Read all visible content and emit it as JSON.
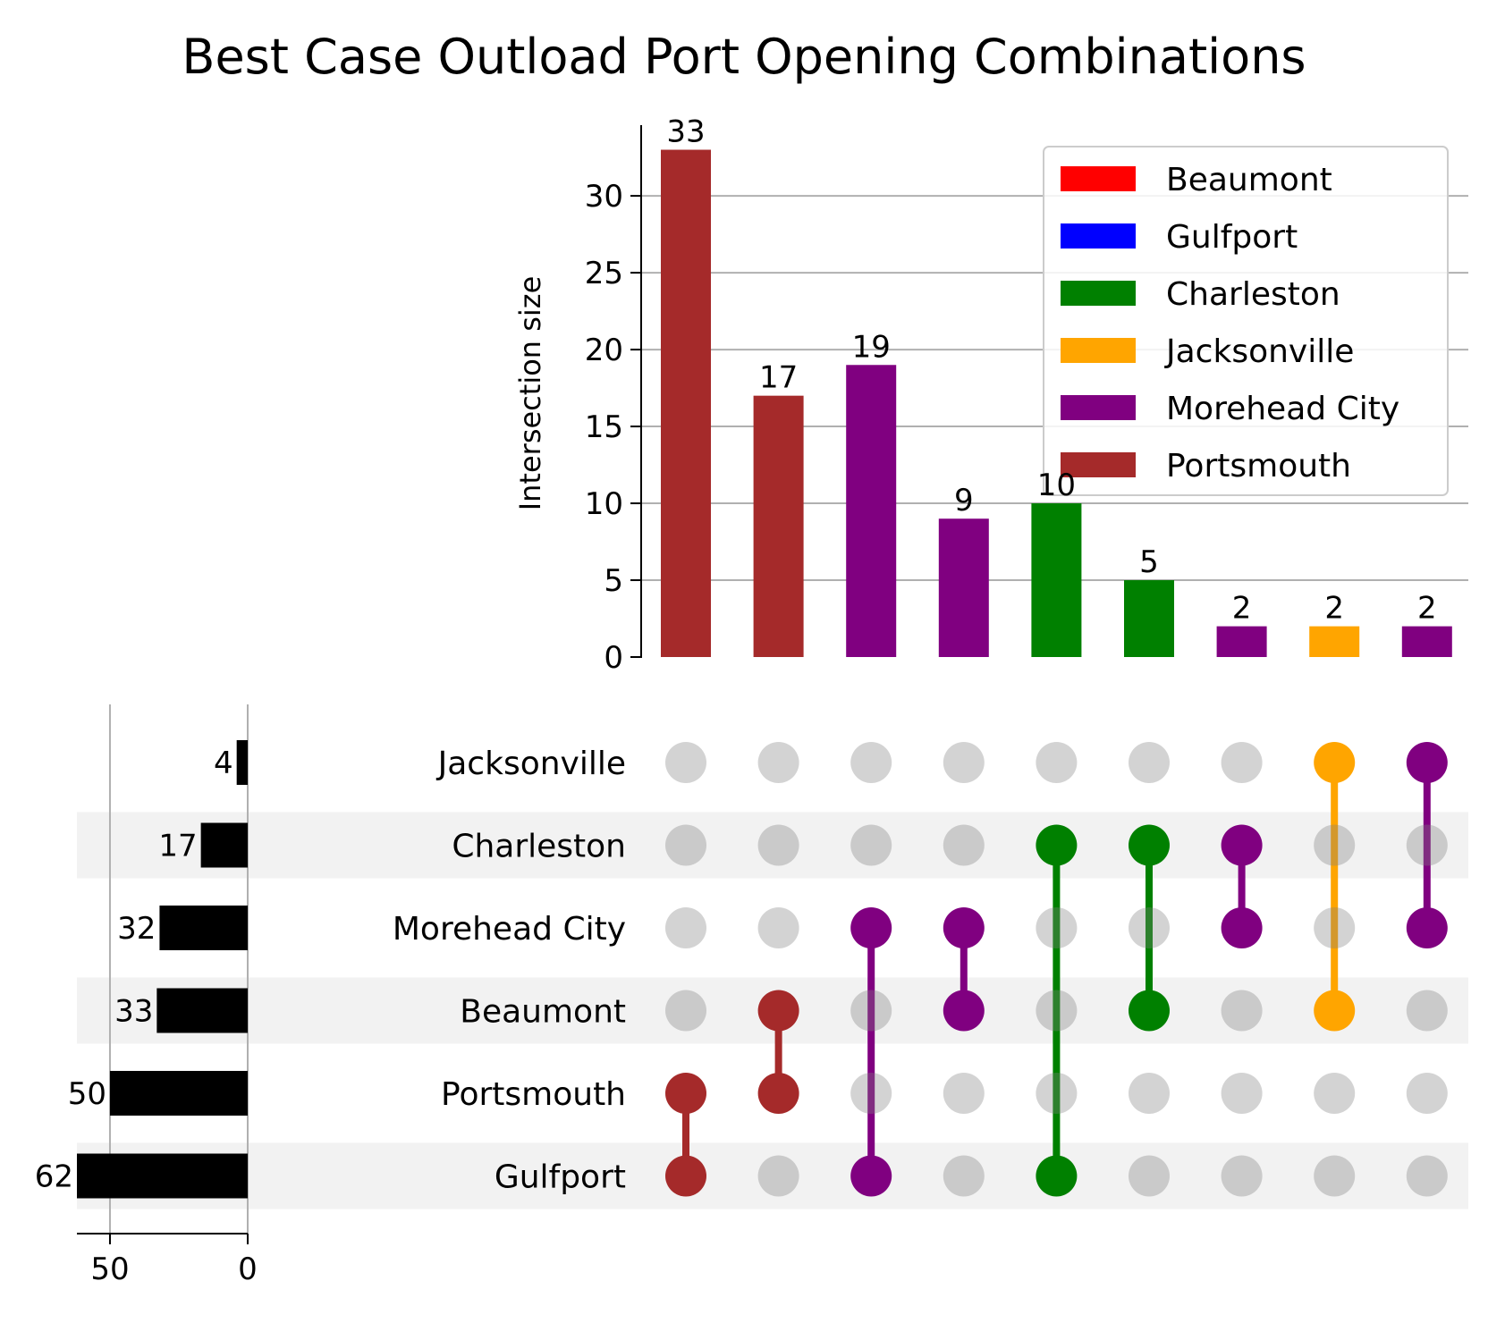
{
  "chart_data": {
    "type": "upset",
    "title": "Best Case Outload Port Opening Combinations",
    "ylabel": "Intersection size",
    "ylim": [
      0,
      34.6
    ],
    "yticks": [
      0,
      5,
      10,
      15,
      20,
      25,
      30
    ],
    "grid": true,
    "legend_placement": "top-right",
    "legend": [
      {
        "name": "Beaumont",
        "color": "#ff0000"
      },
      {
        "name": "Gulfport",
        "color": "#0000ff"
      },
      {
        "name": "Charleston",
        "color": "#008000"
      },
      {
        "name": "Jacksonville",
        "color": "#ffa500"
      },
      {
        "name": "Morehead City",
        "color": "#800080"
      },
      {
        "name": "Portsmouth",
        "color": "#a52a2a"
      }
    ],
    "sets": [
      "Jacksonville",
      "Charleston",
      "Morehead City",
      "Beaumont",
      "Portsmouth",
      "Gulfport"
    ],
    "set_sizes": [
      4,
      17,
      32,
      33,
      50,
      62
    ],
    "set_size_xlim": [
      62,
      0
    ],
    "set_size_ticks": [
      50,
      0
    ],
    "intersections": [
      {
        "members": [
          "Portsmouth",
          "Gulfport"
        ],
        "size": 33,
        "color": "#a52a2a"
      },
      {
        "members": [
          "Beaumont",
          "Portsmouth"
        ],
        "size": 17,
        "color": "#a52a2a"
      },
      {
        "members": [
          "Morehead City",
          "Gulfport"
        ],
        "size": 19,
        "color": "#800080"
      },
      {
        "members": [
          "Morehead City",
          "Beaumont"
        ],
        "size": 9,
        "color": "#800080"
      },
      {
        "members": [
          "Charleston",
          "Gulfport"
        ],
        "size": 10,
        "color": "#008000"
      },
      {
        "members": [
          "Charleston",
          "Beaumont"
        ],
        "size": 5,
        "color": "#008000"
      },
      {
        "members": [
          "Charleston",
          "Morehead City"
        ],
        "size": 2,
        "color": "#800080"
      },
      {
        "members": [
          "Jacksonville",
          "Beaumont"
        ],
        "size": 2,
        "color": "#ffa500"
      },
      {
        "members": [
          "Jacksonville",
          "Morehead City"
        ],
        "size": 2,
        "color": "#800080"
      }
    ],
    "inactive_dot_color": "#d3d3d3",
    "row_shade_color": "#f2f2f2",
    "grid_color": "#b0b0b0",
    "set_bar_color": "#000000"
  }
}
